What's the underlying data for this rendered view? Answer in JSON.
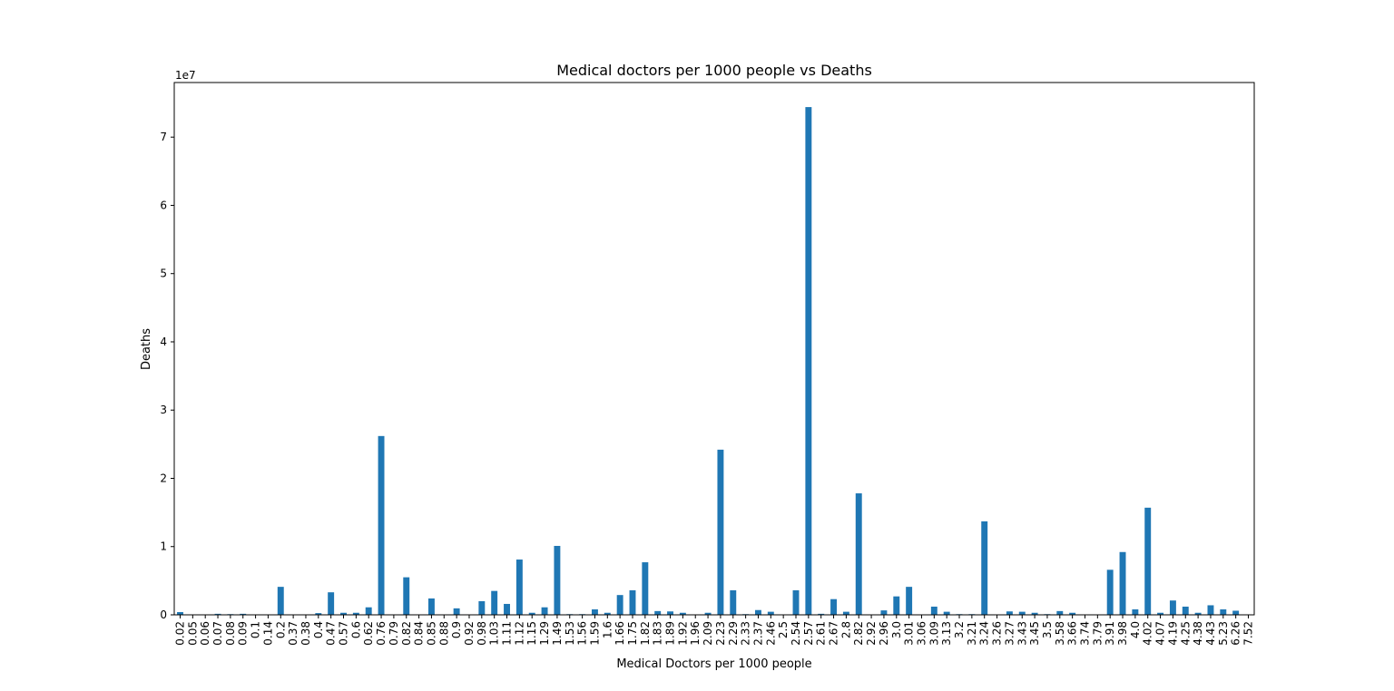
{
  "chart_data": {
    "type": "bar",
    "title": "Medical doctors per 1000 people vs Deaths",
    "xlabel": "Medical Doctors per 1000 people",
    "ylabel": "Deaths",
    "offset_label": "1e7",
    "ylim": [
      0,
      78000000
    ],
    "yticks": [
      0,
      10000000,
      20000000,
      30000000,
      40000000,
      50000000,
      60000000,
      70000000
    ],
    "ytick_labels": [
      "0",
      "1",
      "2",
      "3",
      "4",
      "5",
      "6",
      "7"
    ],
    "bar_color": "#1f77b4",
    "grid": false,
    "categories": [
      "0.02",
      "0.05",
      "0.06",
      "0.07",
      "0.08",
      "0.09",
      "0.1",
      "0.14",
      "0.2",
      "0.37",
      "0.38",
      "0.4",
      "0.47",
      "0.57",
      "0.6",
      "0.62",
      "0.76",
      "0.79",
      "0.82",
      "0.84",
      "0.85",
      "0.88",
      "0.9",
      "0.92",
      "0.98",
      "1.03",
      "1.11",
      "1.12",
      "1.15",
      "1.29",
      "1.49",
      "1.53",
      "1.56",
      "1.59",
      "1.6",
      "1.66",
      "1.75",
      "1.82",
      "1.83",
      "1.89",
      "1.92",
      "1.96",
      "2.09",
      "2.23",
      "2.29",
      "2.33",
      "2.37",
      "2.46",
      "2.5",
      "2.54",
      "2.57",
      "2.61",
      "2.67",
      "2.8",
      "2.82",
      "2.92",
      "2.96",
      "3.0",
      "3.01",
      "3.06",
      "3.09",
      "3.13",
      "3.2",
      "3.21",
      "3.24",
      "3.26",
      "3.27",
      "3.43",
      "3.45",
      "3.5",
      "3.58",
      "3.66",
      "3.74",
      "3.79",
      "3.91",
      "3.98",
      "4.0",
      "4.02",
      "4.07",
      "4.19",
      "4.25",
      "4.38",
      "4.43",
      "5.23",
      "6.26",
      "7.52"
    ],
    "values": [
      400000,
      50000,
      50000,
      150000,
      100000,
      150000,
      50000,
      50000,
      4100000,
      50000,
      50000,
      250000,
      3300000,
      300000,
      300000,
      1100000,
      26200000,
      50000,
      5500000,
      50000,
      2400000,
      50000,
      950000,
      50000,
      2000000,
      3500000,
      1600000,
      8100000,
      300000,
      1100000,
      10100000,
      100000,
      100000,
      800000,
      300000,
      2900000,
      3600000,
      7700000,
      550000,
      500000,
      300000,
      50000,
      300000,
      24200000,
      3600000,
      100000,
      700000,
      450000,
      50000,
      3600000,
      74400000,
      150000,
      2300000,
      450000,
      17800000,
      50000,
      650000,
      2700000,
      4100000,
      50000,
      1200000,
      450000,
      100000,
      100000,
      13700000,
      50000,
      500000,
      450000,
      300000,
      100000,
      550000,
      300000,
      50000,
      50000,
      6600000,
      9200000,
      800000,
      15700000,
      300000,
      2100000,
      1200000,
      300000,
      1400000,
      800000,
      600000,
      50000
    ]
  }
}
